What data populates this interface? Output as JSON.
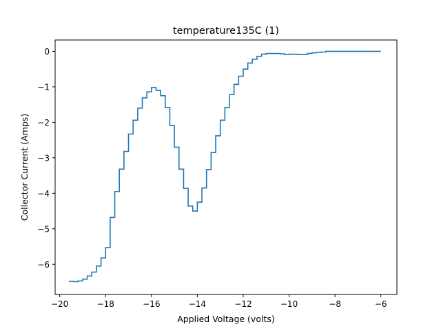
{
  "chart_data": {
    "type": "line",
    "title": "temperature135C (1)",
    "xlabel": "Applied Voltage (volts)",
    "ylabel": "Collector Current (Amps)",
    "xlim": [
      -20.2,
      -5.3
    ],
    "ylim": [
      -6.85,
      0.32
    ],
    "xticks": [
      -20,
      -18,
      -16,
      -14,
      -12,
      -10,
      -8,
      -6
    ],
    "xtick_labels": [
      "−20",
      "−18",
      "−16",
      "−14",
      "−12",
      "−10",
      "−8",
      "−6"
    ],
    "yticks": [
      0,
      -1,
      -2,
      -3,
      -4,
      -5,
      -6
    ],
    "ytick_labels": [
      "0",
      "−1",
      "−2",
      "−3",
      "−4",
      "−5",
      "−6"
    ],
    "grid": false,
    "step": "post",
    "series": [
      {
        "color": "#1f77b4",
        "x": [
          -19.6,
          -19.4,
          -19.2,
          -19.0,
          -18.8,
          -18.6,
          -18.4,
          -18.2,
          -18.0,
          -17.8,
          -17.6,
          -17.4,
          -17.2,
          -17.0,
          -16.8,
          -16.6,
          -16.4,
          -16.2,
          -16.0,
          -15.8,
          -15.6,
          -15.4,
          -15.2,
          -15.0,
          -14.8,
          -14.6,
          -14.4,
          -14.2,
          -14.0,
          -13.8,
          -13.6,
          -13.4,
          -13.2,
          -13.0,
          -12.8,
          -12.6,
          -12.4,
          -12.2,
          -12.0,
          -11.8,
          -11.6,
          -11.4,
          -11.2,
          -11.0,
          -10.8,
          -10.6,
          -10.4,
          -10.2,
          -10.0,
          -9.8,
          -9.6,
          -9.4,
          -9.2,
          -9.0,
          -8.8,
          -8.6,
          -8.4,
          -8.2,
          -8.0,
          -7.5,
          -7.0,
          -6.5,
          -6.0
        ],
        "y": [
          -6.48,
          -6.49,
          -6.47,
          -6.42,
          -6.33,
          -6.22,
          -6.05,
          -5.82,
          -5.53,
          -4.68,
          -3.95,
          -3.32,
          -2.82,
          -2.33,
          -1.94,
          -1.6,
          -1.31,
          -1.14,
          -1.02,
          -1.1,
          -1.25,
          -1.58,
          -2.09,
          -2.7,
          -3.32,
          -3.86,
          -4.36,
          -4.5,
          -4.25,
          -3.85,
          -3.33,
          -2.85,
          -2.38,
          -1.94,
          -1.58,
          -1.22,
          -0.93,
          -0.7,
          -0.5,
          -0.33,
          -0.22,
          -0.14,
          -0.08,
          -0.06,
          -0.06,
          -0.06,
          -0.07,
          -0.09,
          -0.08,
          -0.08,
          -0.09,
          -0.09,
          -0.06,
          -0.04,
          -0.03,
          -0.02,
          0.0,
          0.0,
          0.0,
          0.0,
          0.0,
          0.0,
          0.0
        ]
      }
    ]
  }
}
